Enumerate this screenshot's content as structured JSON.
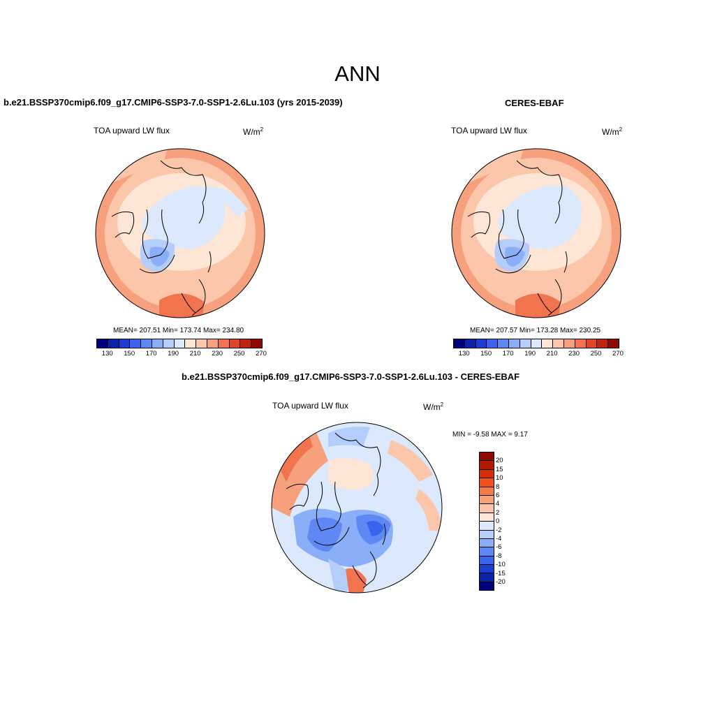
{
  "title": "ANN",
  "left_panel": {
    "title": "b.e21.BSSP370cmip6.f09_g17.CMIP6-SSP3-7.0-SSP1-2.6Lu.103 (yrs 2015-2039)",
    "variable": "TOA upward LW flux",
    "unit_base": "W/m",
    "unit_exp": "2",
    "stats": "MEAN= 207.51   Min= 173.74   Max= 234.80"
  },
  "right_panel": {
    "title": "CERES-EBAF",
    "variable": "TOA upward LW flux",
    "unit_base": "W/m",
    "unit_exp": "2",
    "stats": "MEAN= 207.57   Min= 173.28   Max= 230.25"
  },
  "diff_panel": {
    "title": "b.e21.BSSP370cmip6.f09_g17.CMIP6-SSP3-7.0-SSP1-2.6Lu.103 - CERES-EBAF",
    "variable": "TOA upward LW flux",
    "unit_base": "W/m",
    "unit_exp": "2",
    "stats": "MIN =  -9.58 MAX =   9.17"
  },
  "abs_colorbar": {
    "colors": [
      "#00007f",
      "#0a22a8",
      "#1c3fd2",
      "#3a64ef",
      "#5e89f5",
      "#8aaef8",
      "#b4cdfb",
      "#dce9fd",
      "#fde6d6",
      "#fcc6aa",
      "#f8a07e",
      "#f2744f",
      "#e24624",
      "#c12310",
      "#8e0a00"
    ],
    "tick_labels": [
      "130",
      "150",
      "170",
      "190",
      "210",
      "230",
      "250",
      "270"
    ]
  },
  "diff_colorbar": {
    "colors_top_to_bottom": [
      "#8e0a00",
      "#b21a05",
      "#d92d0a",
      "#f2501f",
      "#f47c4a",
      "#f6a07a",
      "#fac5a8",
      "#fde6d6",
      "#dce9fd",
      "#b4cdfb",
      "#8aaef8",
      "#5e89f5",
      "#3a64ef",
      "#1c3fd2",
      "#0a22a8",
      "#00007f"
    ],
    "tick_labels_top_to_bottom": [
      "20",
      "15",
      "10",
      "8",
      "6",
      "4",
      "2",
      "0",
      "-2",
      "-4",
      "-6",
      "-8",
      "-10",
      "-15",
      "-20"
    ]
  }
}
